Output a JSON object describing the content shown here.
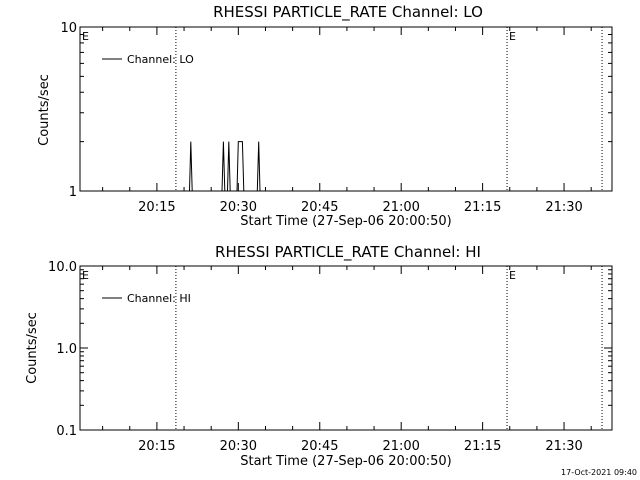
{
  "footer": {
    "timestamp": "17-Oct-2021 09:40"
  },
  "chart_data": [
    {
      "type": "line",
      "title": "RHESSI PARTICLE_RATE Channel: LO",
      "xlabel": "Start Time (27-Sep-06 20:00:50)",
      "ylabel": "Counts/sec",
      "yscale": "log",
      "xlim": [
        "20:00:50",
        "21:38:50"
      ],
      "ylim": [
        1,
        10
      ],
      "xticks": [
        "20:15",
        "20:30",
        "20:45",
        "21:00",
        "21:15",
        "21:30"
      ],
      "yticks": [
        "1",
        "10"
      ],
      "grid": false,
      "legend": {
        "placement": "top-left",
        "entries": [
          "Channel: LO"
        ]
      },
      "markers": [
        {
          "label": "E",
          "time": "20:00:50",
          "style": "none"
        },
        {
          "label": "",
          "time": "20:18:30",
          "style": "dotted"
        },
        {
          "label": "E",
          "time": "21:19:30",
          "style": "dotted"
        },
        {
          "label": "",
          "time": "21:37:00",
          "style": "dotted"
        }
      ],
      "series": [
        {
          "name": "Channel: LO",
          "x": [
            "20:00:50",
            "20:21:00",
            "20:21:15",
            "20:21:30",
            "20:27:00",
            "20:27:15",
            "20:27:30",
            "20:28:00",
            "20:28:15",
            "20:28:30",
            "20:29:45",
            "20:30:00",
            "20:30:15",
            "20:30:30",
            "20:30:45",
            "20:31:00",
            "20:33:30",
            "20:33:45",
            "20:34:00",
            "21:38:50"
          ],
          "y": [
            1,
            1,
            2,
            1,
            1,
            2,
            1,
            1,
            2,
            1,
            1,
            2,
            2,
            2,
            2,
            1,
            1,
            2,
            1,
            1
          ]
        }
      ]
    },
    {
      "type": "line",
      "title": "RHESSI PARTICLE_RATE Channel: HI",
      "xlabel": "Start Time (27-Sep-06 20:00:50)",
      "ylabel": "Counts/sec",
      "yscale": "log",
      "xlim": [
        "20:00:50",
        "21:38:50"
      ],
      "ylim": [
        0.1,
        10
      ],
      "xticks": [
        "20:15",
        "20:30",
        "20:45",
        "21:00",
        "21:15",
        "21:30"
      ],
      "yticks": [
        "0.1",
        "1.0",
        "10.0"
      ],
      "grid": false,
      "legend": {
        "placement": "top-left",
        "entries": [
          "Channel: HI"
        ]
      },
      "markers": [
        {
          "label": "E",
          "time": "20:00:50",
          "style": "none"
        },
        {
          "label": "",
          "time": "20:18:30",
          "style": "dotted"
        },
        {
          "label": "E",
          "time": "21:19:30",
          "style": "dotted"
        },
        {
          "label": "",
          "time": "21:37:00",
          "style": "dotted"
        }
      ],
      "series": [
        {
          "name": "Channel: HI",
          "x": [],
          "y": []
        }
      ]
    }
  ]
}
